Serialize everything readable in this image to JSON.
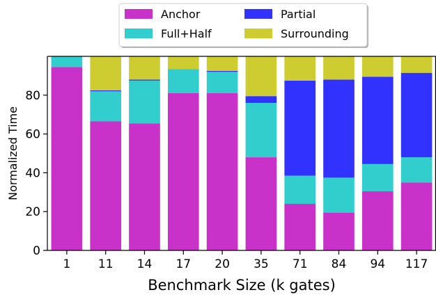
{
  "chart_data": {
    "type": "bar",
    "stacked": true,
    "xlabel": "Benchmark Size (k gates)",
    "ylabel": "Normalized Time",
    "ylim": [
      0,
      100
    ],
    "yticks": [
      0,
      20,
      40,
      60,
      80
    ],
    "categories": [
      "1",
      "11",
      "14",
      "17",
      "20",
      "35",
      "71",
      "84",
      "94",
      "117"
    ],
    "series": [
      {
        "name": "Anchor",
        "color": "#c832c8",
        "values": [
          94.5,
          66.5,
          65.5,
          81,
          81,
          48,
          24,
          19.5,
          30.5,
          35
        ]
      },
      {
        "name": "Full+Half",
        "color": "#32cdcd",
        "values": [
          5.5,
          15.5,
          22,
          12.5,
          11,
          28,
          14.5,
          18,
          14,
          13
        ]
      },
      {
        "name": "Partial",
        "color": "#3232ff",
        "values": [
          0,
          0.5,
          0.5,
          0,
          0.5,
          3.5,
          49,
          50.5,
          45,
          43.5
        ]
      },
      {
        "name": "Surrounding",
        "color": "#cdcd32",
        "values": [
          0,
          17.5,
          12,
          6.5,
          7.5,
          20.5,
          12.5,
          12,
          10.5,
          8.5
        ]
      }
    ],
    "legend": {
      "position": "top-center",
      "columns": 2,
      "order": [
        "Anchor",
        "Full+Half",
        "Partial",
        "Surrounding"
      ]
    },
    "grid": false
  }
}
